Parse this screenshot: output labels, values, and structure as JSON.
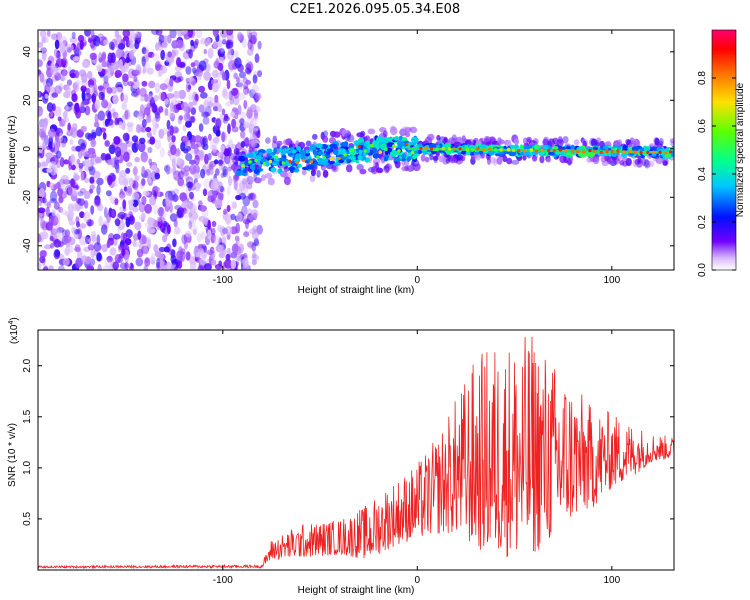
{
  "chart_data": [
    {
      "type": "heatmap",
      "title": "C2E1.2026.095.05.34.E08",
      "xlabel": "Height of straight line (km)",
      "ylabel": "Frequency (Hz)",
      "xlim": [
        -195,
        132
      ],
      "ylim": [
        -50,
        49
      ],
      "xticks": [
        -100,
        0,
        100
      ],
      "yticks": [
        40,
        20,
        0,
        -20,
        -40
      ],
      "colorbar": {
        "label": "Normalized spectral amplitude",
        "range": [
          0,
          1
        ],
        "ticks": [
          0.0,
          0.2,
          0.4,
          0.6,
          0.8
        ],
        "colors": [
          "#ffffff",
          "#c9a0ff",
          "#5000ff",
          "#0000ff",
          "#00c8ff",
          "#00ff80",
          "#80ff00",
          "#ffe000",
          "#ff6000",
          "#ff0000",
          "#ff0080"
        ]
      },
      "regions": [
        {
          "name": "noise",
          "x_range": [
            -195,
            -85
          ],
          "freq_range": [
            -50,
            49
          ],
          "amplitude": [
            0.0,
            0.15
          ]
        },
        {
          "name": "signal-track",
          "x_range": [
            -95,
            132
          ],
          "freq_start": -7,
          "freq_end": -2,
          "amplitude": [
            0.2,
            1.0
          ]
        }
      ]
    },
    {
      "type": "line",
      "xlabel": "Height of straight line (km)",
      "ylabel": "SNR (10 * v/v)",
      "scale_label": "(x10",
      "scale_exp": "4",
      "scale_close": ")",
      "xlim": [
        -195,
        132
      ],
      "ylim": [
        0,
        2.35
      ],
      "xticks": [
        -100,
        0,
        100
      ],
      "yticks": [
        0.5,
        1.0,
        1.5,
        2.0
      ],
      "ytick_labels": [
        "0.5",
        "1.0",
        "1.5",
        "2.0"
      ],
      "series": [
        {
          "name": "SNR",
          "color": "#ee2222",
          "envelope": {
            "x": [
              -195,
              -80,
              -75,
              -60,
              -40,
              -25,
              -15,
              -10,
              0,
              10,
              20,
              30,
              40,
              55,
              60,
              70,
              80,
              90,
              100,
              110,
              120,
              132
            ],
            "min": [
              0.02,
              0.02,
              0.1,
              0.12,
              0.15,
              0.1,
              0.2,
              0.25,
              0.3,
              0.35,
              0.35,
              0.2,
              0.15,
              0.1,
              0.15,
              0.3,
              0.5,
              0.6,
              0.8,
              0.9,
              1.05,
              1.1
            ],
            "max": [
              0.04,
              0.05,
              0.3,
              0.45,
              0.5,
              0.65,
              0.85,
              0.9,
              1.05,
              1.3,
              1.7,
              2.1,
              2.25,
              2.3,
              2.35,
              2.05,
              1.85,
              1.6,
              1.55,
              1.45,
              1.35,
              1.3
            ]
          }
        }
      ]
    }
  ]
}
